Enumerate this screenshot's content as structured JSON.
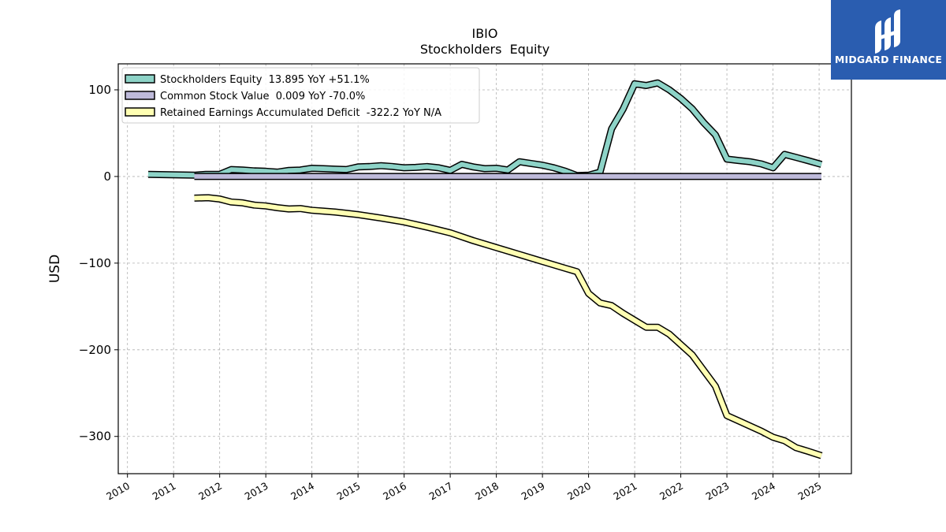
{
  "chart_data": {
    "type": "line",
    "title": "IBIO",
    "subtitle": "Stockholders  Equity",
    "ylabel": "USD",
    "xlabel": "",
    "xlim": [
      2009.8,
      2025.7
    ],
    "ylim": [
      -343,
      130
    ],
    "yticks": [
      100,
      0,
      -100,
      -200,
      -300
    ],
    "ytick_labels": [
      "100",
      "0",
      "−100",
      "−200",
      "−300"
    ],
    "xticks": [
      2010,
      2011,
      2012,
      2013,
      2014,
      2015,
      2016,
      2017,
      2018,
      2019,
      2020,
      2021,
      2022,
      2023,
      2024,
      2025
    ],
    "xtick_labels": [
      "2010",
      "2011",
      "2012",
      "2013",
      "2014",
      "2015",
      "2016",
      "2017",
      "2018",
      "2019",
      "2020",
      "2021",
      "2022",
      "2023",
      "2024",
      "2025"
    ],
    "grid": true,
    "legend_position": "top-left",
    "series": [
      {
        "name": "Stockholders Equity",
        "legend_label": "Stockholders Equity  13.895 YoY +51.1%",
        "color": "#8dd3c7",
        "points": [
          [
            2010.45,
            2.5
          ],
          [
            2011.45,
            1.5
          ],
          [
            2011.7,
            2.5
          ],
          [
            2012.0,
            2.5
          ],
          [
            2012.25,
            8.0
          ],
          [
            2012.5,
            7.5
          ],
          [
            2012.75,
            6.5
          ],
          [
            2013.0,
            6.0
          ],
          [
            2013.25,
            5.0
          ],
          [
            2013.5,
            7.0
          ],
          [
            2013.75,
            7.5
          ],
          [
            2014.0,
            9.5
          ],
          [
            2014.25,
            9.0
          ],
          [
            2014.5,
            8.5
          ],
          [
            2014.75,
            8.0
          ],
          [
            2015.0,
            11.0
          ],
          [
            2015.25,
            11.5
          ],
          [
            2015.5,
            12.5
          ],
          [
            2015.75,
            11.5
          ],
          [
            2016.0,
            10.0
          ],
          [
            2016.25,
            10.5
          ],
          [
            2016.5,
            11.5
          ],
          [
            2016.75,
            10.0
          ],
          [
            2017.0,
            7.0
          ],
          [
            2017.25,
            14.0
          ],
          [
            2017.5,
            11.0
          ],
          [
            2017.75,
            9.0
          ],
          [
            2018.0,
            9.5
          ],
          [
            2018.25,
            7.5
          ],
          [
            2018.5,
            17.0
          ],
          [
            2018.75,
            15.0
          ],
          [
            2019.0,
            13.0
          ],
          [
            2019.25,
            10.0
          ],
          [
            2019.5,
            6.0
          ],
          [
            2019.75,
            1.0
          ],
          [
            2020.0,
            1.5
          ],
          [
            2020.25,
            5.0
          ],
          [
            2020.5,
            55.0
          ],
          [
            2020.75,
            78.0
          ],
          [
            2021.0,
            107.0
          ],
          [
            2021.25,
            105.0
          ],
          [
            2021.5,
            108.0
          ],
          [
            2021.75,
            100.0
          ],
          [
            2022.0,
            90.0
          ],
          [
            2022.25,
            78.0
          ],
          [
            2022.5,
            62.0
          ],
          [
            2022.75,
            48.0
          ],
          [
            2023.0,
            20.0
          ],
          [
            2023.25,
            18.5
          ],
          [
            2023.5,
            17.0
          ],
          [
            2023.75,
            14.5
          ],
          [
            2024.0,
            10.0
          ],
          [
            2024.25,
            25.5
          ],
          [
            2024.5,
            22.0
          ],
          [
            2024.75,
            18.5
          ],
          [
            2025.05,
            13.9
          ]
        ]
      },
      {
        "name": "Common Stock Value",
        "legend_label": "Common Stock Value  0.009 YoY -70.0%",
        "color": "#bebada",
        "points": [
          [
            2011.45,
            0.009
          ],
          [
            2025.05,
            0.009
          ]
        ]
      },
      {
        "name": "Retained Earnings Accumulated Deficit",
        "legend_label": "Retained Earnings Accumulated Deficit  -322.2 YoY N/A",
        "color": "#ffffb3",
        "points": [
          [
            2011.45,
            -25.0
          ],
          [
            2011.75,
            -24.5
          ],
          [
            2012.0,
            -26.0
          ],
          [
            2012.25,
            -29.5
          ],
          [
            2012.5,
            -30.5
          ],
          [
            2012.75,
            -33.0
          ],
          [
            2013.0,
            -34.0
          ],
          [
            2013.25,
            -36.0
          ],
          [
            2013.5,
            -37.5
          ],
          [
            2013.75,
            -37.0
          ],
          [
            2014.0,
            -39.0
          ],
          [
            2014.25,
            -40.0
          ],
          [
            2014.5,
            -41.0
          ],
          [
            2014.75,
            -42.5
          ],
          [
            2015.0,
            -44.0
          ],
          [
            2015.5,
            -48.0
          ],
          [
            2016.0,
            -52.5
          ],
          [
            2016.5,
            -58.5
          ],
          [
            2017.0,
            -65.0
          ],
          [
            2017.5,
            -74.0
          ],
          [
            2018.0,
            -82.0
          ],
          [
            2018.5,
            -90.0
          ],
          [
            2019.0,
            -98.0
          ],
          [
            2019.5,
            -106.0
          ],
          [
            2019.75,
            -110.0
          ],
          [
            2020.0,
            -135.0
          ],
          [
            2020.25,
            -146.0
          ],
          [
            2020.5,
            -149.0
          ],
          [
            2020.75,
            -158.0
          ],
          [
            2021.0,
            -166.0
          ],
          [
            2021.25,
            -174.0
          ],
          [
            2021.5,
            -174.0
          ],
          [
            2021.75,
            -182.0
          ],
          [
            2022.0,
            -194.0
          ],
          [
            2022.25,
            -206.0
          ],
          [
            2022.5,
            -224.0
          ],
          [
            2022.75,
            -242.0
          ],
          [
            2023.0,
            -276.0
          ],
          [
            2023.25,
            -282.0
          ],
          [
            2023.5,
            -288.0
          ],
          [
            2023.75,
            -294.0
          ],
          [
            2024.0,
            -301.0
          ],
          [
            2024.25,
            -305.0
          ],
          [
            2024.5,
            -313.0
          ],
          [
            2024.75,
            -317.0
          ],
          [
            2025.05,
            -322.2
          ]
        ]
      }
    ]
  },
  "logo": {
    "brand": "MIDGARD FINANCE",
    "icon": "midgard-logo-icon",
    "background": "#2a5db0"
  }
}
